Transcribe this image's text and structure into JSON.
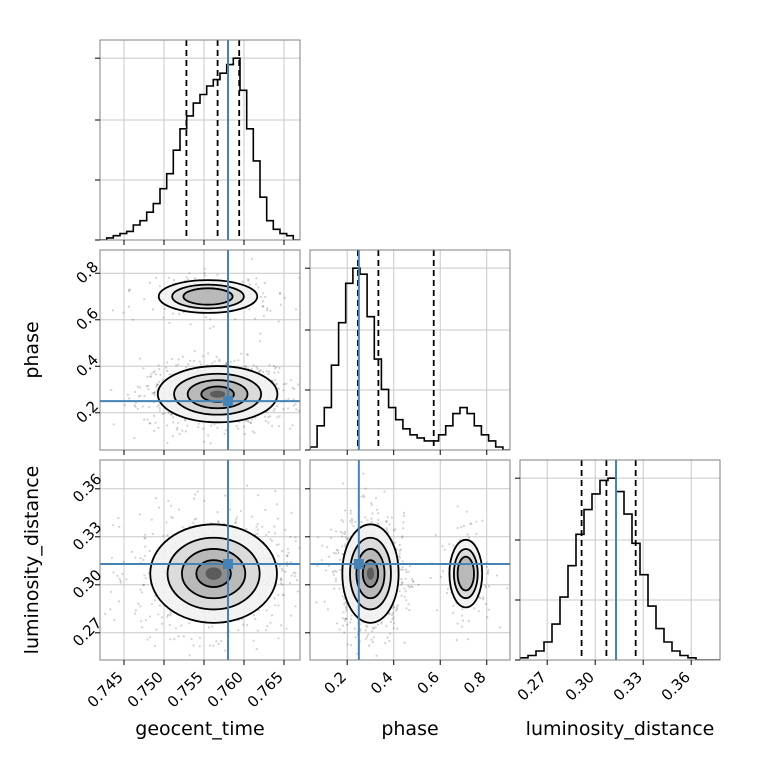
{
  "chart_data": {
    "type": "corner",
    "parameters": [
      "geocent_time",
      "phase",
      "luminosity_distance"
    ],
    "truths": {
      "geocent_time": 0.758,
      "phase": 0.25,
      "luminosity_distance": 0.313
    },
    "truth_color": "#4682b4",
    "ticks": {
      "geocent_time": [
        "0.745",
        "0.750",
        "0.755",
        "0.760",
        "0.765"
      ],
      "phase": [
        "0.2",
        "0.4",
        "0.6",
        "0.8"
      ],
      "luminosity_distance": [
        "0.27",
        "0.30",
        "0.33",
        "0.36"
      ]
    },
    "ranges": {
      "geocent_time": [
        0.742,
        0.767
      ],
      "phase": [
        0.04,
        0.9
      ],
      "luminosity_distance": [
        0.253,
        0.378
      ]
    },
    "quantiles": {
      "geocent_time": [
        0.7528,
        0.7567,
        0.7594
      ],
      "phase": [
        0.246,
        0.334,
        0.572
      ],
      "luminosity_distance": [
        0.2915,
        0.307,
        0.3253
      ]
    },
    "histograms": {
      "geocent_time": {
        "edges_range": [
          0.742,
          0.767
        ],
        "counts": [
          0,
          1,
          2,
          3,
          4,
          7,
          9,
          13,
          17,
          24,
          31,
          42,
          52,
          58,
          64,
          68,
          72,
          75,
          78,
          82,
          85,
          70,
          52,
          37,
          20,
          9,
          5,
          3,
          2,
          0
        ]
      },
      "phase": {
        "edges_range": [
          0.04,
          0.9
        ],
        "counts": [
          1,
          8,
          14,
          28,
          42,
          55,
          60,
          58,
          44,
          30,
          20,
          14,
          10,
          7,
          5,
          4,
          3,
          3,
          5,
          8,
          12,
          14,
          12,
          8,
          5,
          3,
          1,
          0
        ]
      },
      "luminosity_distance": {
        "edges_range": [
          0.253,
          0.378
        ],
        "counts": [
          1,
          2,
          4,
          8,
          16,
          28,
          42,
          56,
          67,
          74,
          80,
          81,
          75,
          65,
          52,
          38,
          24,
          14,
          8,
          4,
          2,
          1,
          0,
          0,
          0
        ]
      }
    },
    "joint": [
      {
        "x": "geocent_time",
        "y": "phase",
        "modes": [
          {
            "x": 0.7567,
            "y": 0.28,
            "sx": 0.0034,
            "sy": 0.055,
            "w": 0.86
          },
          {
            "x": 0.7555,
            "y": 0.7,
            "sx": 0.0035,
            "sy": 0.04,
            "w": 0.14
          }
        ]
      },
      {
        "x": "geocent_time",
        "y": "luminosity_distance",
        "modes": [
          {
            "x": 0.7562,
            "y": 0.307,
            "sx": 0.0036,
            "sy": 0.014,
            "w": 1.0
          }
        ]
      },
      {
        "x": "phase",
        "y": "luminosity_distance",
        "modes": [
          {
            "x": 0.3,
            "y": 0.307,
            "sx": 0.055,
            "sy": 0.014,
            "w": 0.86
          },
          {
            "x": 0.71,
            "y": 0.307,
            "sx": 0.04,
            "sy": 0.012,
            "w": 0.14
          }
        ]
      }
    ]
  }
}
